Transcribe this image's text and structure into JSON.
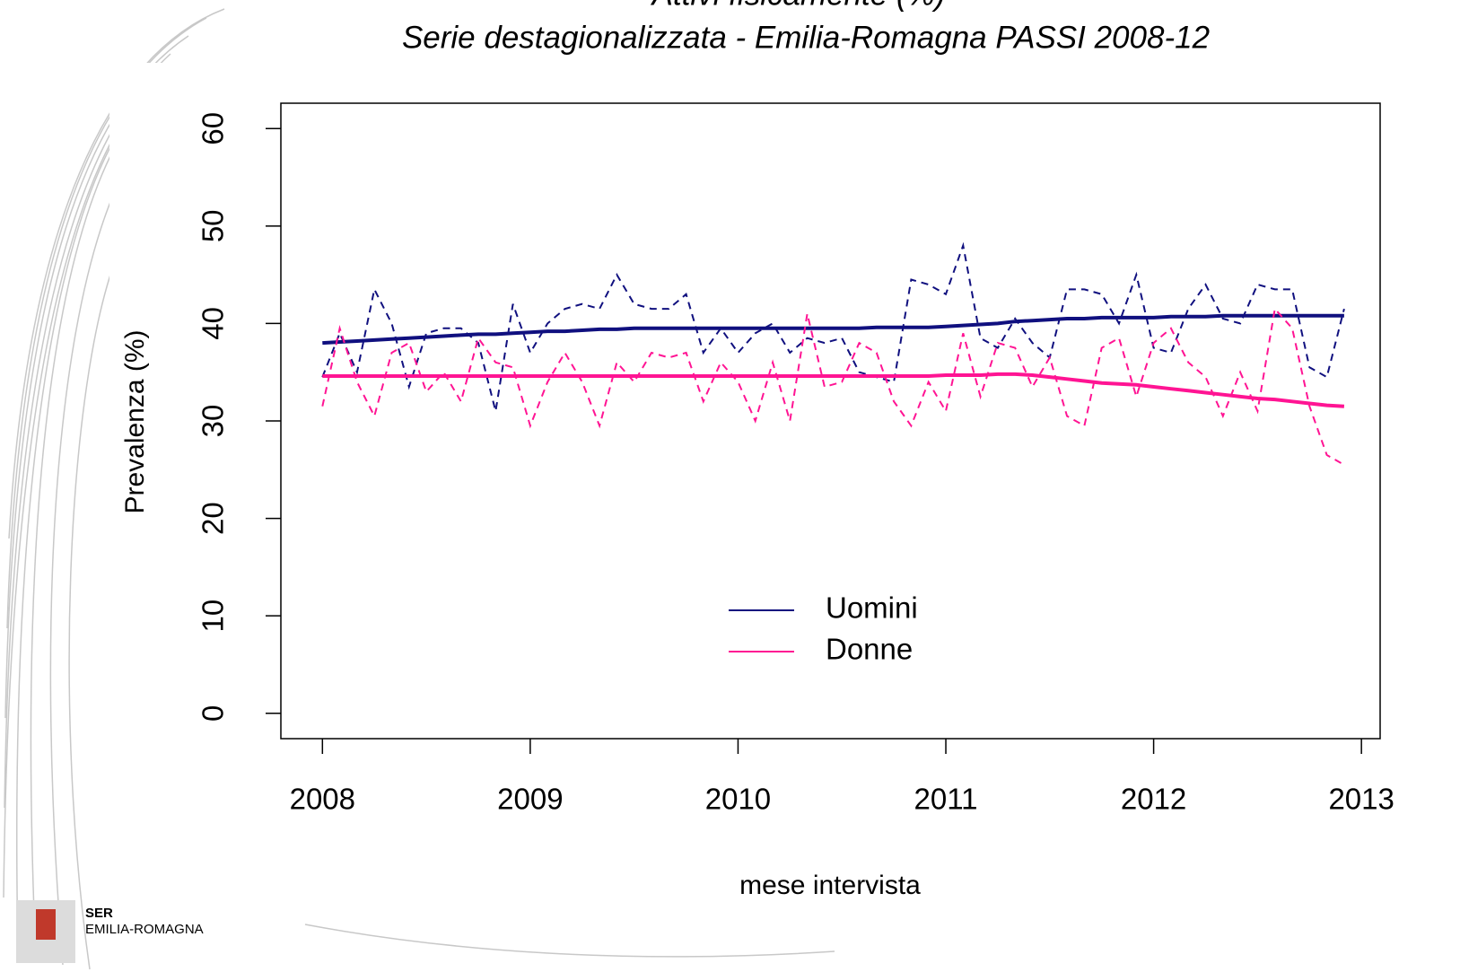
{
  "chart_data": {
    "type": "line",
    "title": "Attivi fisicamente (%)",
    "subtitle": "Serie destagionalizzata - Emilia-Romagna PASSI 2008-12",
    "x_label": "mese intervista",
    "y_label": "Prevalenza (%)",
    "x": [
      2008,
      2008.0833,
      2008.1667,
      2008.25,
      2008.3333,
      2008.4167,
      2008.5,
      2008.5833,
      2008.6667,
      2008.75,
      2008.8333,
      2008.9167,
      2009,
      2009.0833,
      2009.1667,
      2009.25,
      2009.3333,
      2009.4167,
      2009.5,
      2009.5833,
      2009.6667,
      2009.75,
      2009.8333,
      2009.9167,
      2010,
      2010.0833,
      2010.1667,
      2010.25,
      2010.3333,
      2010.4167,
      2010.5,
      2010.5833,
      2010.6667,
      2010.75,
      2010.8333,
      2010.9167,
      2011,
      2011.0833,
      2011.1667,
      2011.25,
      2011.3333,
      2011.4167,
      2011.5,
      2011.5833,
      2011.6667,
      2011.75,
      2011.8333,
      2011.9167,
      2012,
      2012.0833,
      2012.1667,
      2012.25,
      2012.3333,
      2012.4167,
      2012.5,
      2012.5833,
      2012.6667,
      2012.75,
      2012.8333,
      2012.9167
    ],
    "series": [
      {
        "name": "Uomini",
        "color": "#10107f",
        "values": [
          34.5,
          39,
          35,
          43.5,
          40,
          33.5,
          39,
          39.5,
          39.5,
          38,
          31,
          42,
          37,
          40,
          41.5,
          42,
          41.5,
          45,
          42,
          41.5,
          41.5,
          43,
          37,
          39.5,
          37,
          39,
          40,
          37,
          38.5,
          38,
          38.5,
          35,
          34.5,
          34,
          44.5,
          44,
          43,
          48,
          38.5,
          37.5,
          40.5,
          38,
          36.5,
          43.5,
          43.5,
          43,
          40,
          45,
          37.5,
          37,
          41.5,
          44,
          40.5,
          40,
          44,
          43.5,
          43.5,
          35.5,
          34.5,
          41.5
        ],
        "trend": [
          38.0,
          38.1,
          38.2,
          38.3,
          38.4,
          38.5,
          38.6,
          38.7,
          38.8,
          38.9,
          38.9,
          39.0,
          39.1,
          39.2,
          39.2,
          39.3,
          39.4,
          39.4,
          39.5,
          39.5,
          39.5,
          39.5,
          39.5,
          39.5,
          39.5,
          39.5,
          39.5,
          39.5,
          39.5,
          39.5,
          39.5,
          39.5,
          39.6,
          39.6,
          39.6,
          39.6,
          39.7,
          39.8,
          39.9,
          40.0,
          40.2,
          40.3,
          40.4,
          40.5,
          40.5,
          40.6,
          40.6,
          40.6,
          40.6,
          40.7,
          40.7,
          40.7,
          40.8,
          40.8,
          40.8,
          40.8,
          40.8,
          40.8,
          40.8,
          40.8
        ]
      },
      {
        "name": "Donne",
        "color": "#ff1493",
        "values": [
          31.5,
          39.5,
          34,
          30.5,
          37,
          38,
          33,
          35,
          32,
          38.5,
          36,
          35.5,
          29.5,
          34,
          37,
          34,
          29.5,
          36,
          34,
          37,
          36.5,
          37,
          32,
          36,
          34,
          30,
          36,
          30,
          41,
          33.5,
          34,
          38,
          37,
          32,
          29.5,
          34,
          31,
          39,
          32.5,
          38,
          37.5,
          33.5,
          36.5,
          30.5,
          29.5,
          37.5,
          38.5,
          32.5,
          38,
          39.5,
          36,
          34.5,
          30.5,
          35,
          31,
          41.5,
          39.5,
          31.5,
          26.5,
          25.5
        ],
        "trend": [
          34.6,
          34.6,
          34.6,
          34.6,
          34.6,
          34.6,
          34.6,
          34.6,
          34.6,
          34.6,
          34.6,
          34.6,
          34.6,
          34.6,
          34.6,
          34.6,
          34.6,
          34.6,
          34.6,
          34.6,
          34.6,
          34.6,
          34.6,
          34.6,
          34.6,
          34.6,
          34.6,
          34.6,
          34.6,
          34.6,
          34.6,
          34.6,
          34.6,
          34.6,
          34.6,
          34.6,
          34.7,
          34.7,
          34.7,
          34.8,
          34.8,
          34.7,
          34.5,
          34.3,
          34.1,
          33.9,
          33.8,
          33.7,
          33.5,
          33.3,
          33.1,
          32.9,
          32.7,
          32.5,
          32.3,
          32.2,
          32.0,
          31.8,
          31.6,
          31.5
        ]
      }
    ],
    "xlim": [
      2007.8,
      2013.09
    ],
    "xticks": [
      2008,
      2009,
      2010,
      2011,
      2012,
      2013
    ],
    "ylim": [
      -2.6,
      62.6
    ],
    "yticks": [
      0,
      10,
      20,
      30,
      40,
      50,
      60
    ],
    "legend": "bottom-center"
  },
  "logo": {
    "line1": "SER",
    "line2": "EMILIA-ROMAGNA"
  }
}
